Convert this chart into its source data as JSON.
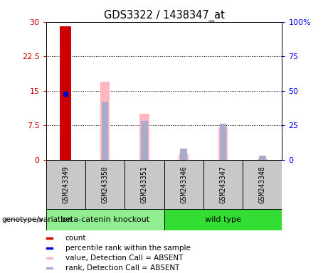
{
  "title": "GDS3322 / 1438347_at",
  "samples": [
    "GSM243349",
    "GSM243350",
    "GSM243351",
    "GSM243346",
    "GSM243347",
    "GSM243348"
  ],
  "groups": [
    "beta-catenin knockout",
    "beta-catenin knockout",
    "beta-catenin knockout",
    "wild type",
    "wild type",
    "wild type"
  ],
  "left_ylim": [
    0,
    30
  ],
  "right_ylim": [
    0,
    100
  ],
  "left_yticks": [
    0,
    7.5,
    15,
    22.5,
    30
  ],
  "right_yticks": [
    0,
    25,
    50,
    75,
    100
  ],
  "left_yticklabels": [
    "0",
    "7.5",
    "15",
    "22.5",
    "30"
  ],
  "right_yticklabels": [
    "0",
    "25",
    "50",
    "75",
    "100%"
  ],
  "count_value": 29.0,
  "count_index": 0,
  "count_color": "#CC0000",
  "rank_value": 48.0,
  "rank_index": 0,
  "rank_color": "#0000CC",
  "absent_value_values": [
    null,
    17.0,
    10.0,
    1.2,
    7.0,
    0.3
  ],
  "absent_value_color": "#FFB6C1",
  "absent_rank_values": [
    null,
    42.0,
    28.0,
    8.0,
    26.0,
    3.0
  ],
  "absent_rank_color": "#AAAACC",
  "bar_width": 0.3,
  "absent_bar_width": 0.25,
  "rank_bar_width": 0.18,
  "group_label": "genotype/variation",
  "legend_items": [
    {
      "label": "count",
      "color": "#CC0000"
    },
    {
      "label": "percentile rank within the sample",
      "color": "#0000CC"
    },
    {
      "label": "value, Detection Call = ABSENT",
      "color": "#FFB6C1"
    },
    {
      "label": "rank, Detection Call = ABSENT",
      "color": "#AAAACC"
    }
  ],
  "background_color": "#FFFFFF",
  "plot_bg_color": "#FFFFFF",
  "grid_color": "#000000",
  "sample_bg_color": "#C8C8C8",
  "group_fill_colors": {
    "beta-catenin knockout": "#90EE90",
    "wild type": "#33DD33"
  },
  "left_tick_color": "#CC0000",
  "right_tick_color": "#0000FF"
}
